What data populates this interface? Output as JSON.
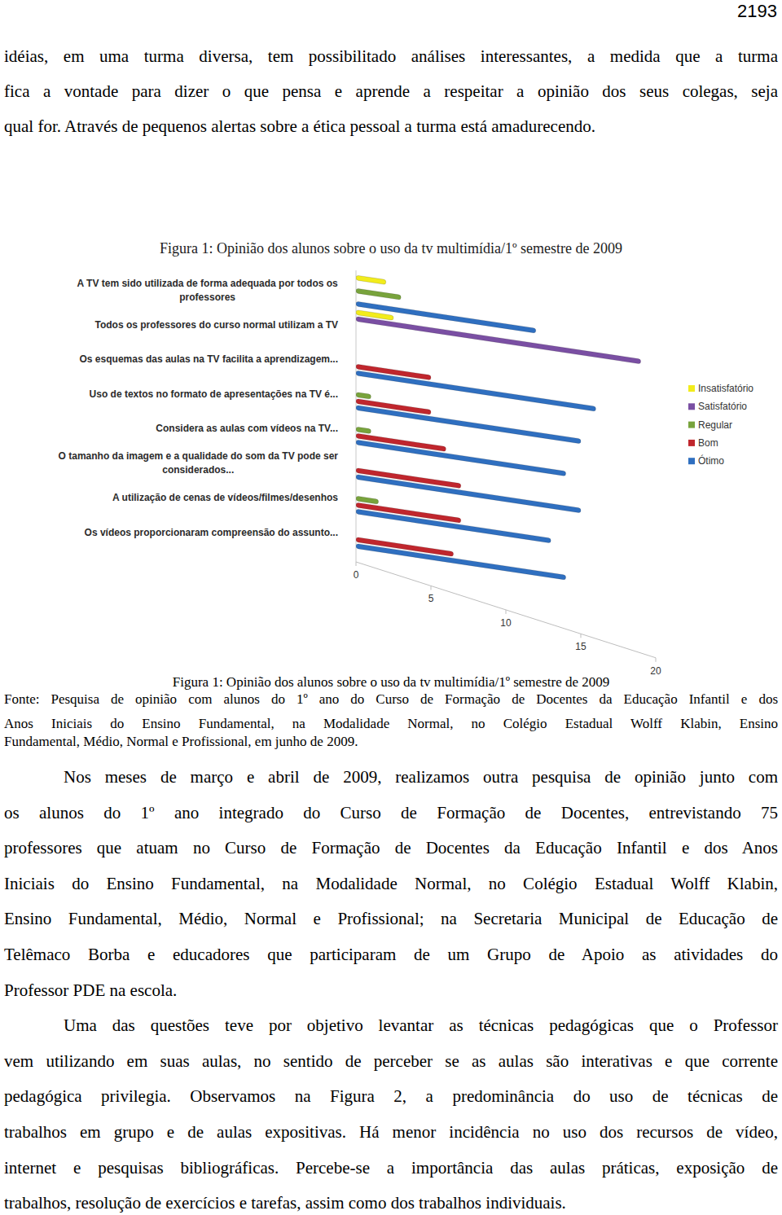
{
  "page_number": "2193",
  "paragraph_top": {
    "lines": [
      "idéias, em uma turma diversa, tem possibilitado análises interessantes, a medida que a turma",
      "fica a vontade para dizer o que pensa e aprende a respeitar a opinião dos seus colegas, seja",
      "qual for. Através de pequenos alertas sobre a ética pessoal a turma está amadurecendo."
    ]
  },
  "figure_title": "Figura 1: Opinião dos alunos sobre o uso da tv multimídia/1º semestre de 2009",
  "chart_data": {
    "type": "bar",
    "orientation": "horizontal",
    "categories": [
      "A TV tem sido utilizada de forma adequada por todos os professores",
      "Todos os professores do curso normal utilizam a TV",
      "Os esquemas das aulas na TV facilita a aprendizagem...",
      "Uso de textos no formato de apresentações na TV é...",
      "Considera as aulas com vídeos na TV...",
      "O tamanho da imagem e a qualidade do som da TV pode ser considerados...",
      "A utilização de cenas de vídeos/filmes/desenhos",
      "Os vídeos proporcionaram compreensão do assunto..."
    ],
    "series": [
      {
        "name": "Insatisfatório",
        "color": "#f2ec1c",
        "values": [
          2,
          2.5,
          0,
          0,
          0,
          0,
          0,
          0
        ]
      },
      {
        "name": "Satisfatório",
        "color": "#7a4fa3",
        "values": [
          0,
          19,
          0,
          0,
          0,
          0,
          0,
          0
        ]
      },
      {
        "name": "Regular",
        "color": "#78a33c",
        "values": [
          3,
          0,
          0,
          1,
          1,
          0,
          1.5,
          0
        ]
      },
      {
        "name": "Bom",
        "color": "#c0262d",
        "values": [
          0,
          0,
          5,
          5,
          6,
          7,
          7,
          6.5
        ]
      },
      {
        "name": "Ótimo",
        "color": "#2f6fc0",
        "values": [
          12,
          0,
          16,
          15,
          14,
          15,
          13,
          14
        ]
      }
    ],
    "xlim": [
      0,
      20
    ],
    "xticks": [
      0,
      5,
      10,
      15,
      20
    ],
    "grid": false,
    "legend": "right"
  },
  "caption": "Figura 1: Opinião dos alunos sobre o uso da tv multimídia/1º semestre de 2009",
  "source_lines": [
    "Fonte: Pesquisa de opinião com alunos do 1º ano do Curso de Formação de Docentes da Educação Infantil e dos",
    "Anos Iniciais do Ensino Fundamental, na Modalidade Normal, no Colégio Estadual Wolff Klabin, Ensino",
    "Fundamental, Médio, Normal e Profissional, em junho de 2009."
  ],
  "paragraphs": [
    {
      "lines": [
        "Nos meses de março e abril de 2009, realizamos outra pesquisa de opinião junto com",
        "os alunos do 1º ano integrado do Curso de Formação de Docentes, entrevistando 75",
        "professores que atuam no Curso de Formação de Docentes da Educação Infantil e dos Anos",
        "Iniciais do Ensino Fundamental, na Modalidade Normal, no Colégio Estadual Wolff Klabin,",
        "Ensino Fundamental, Médio, Normal e Profissional; na Secretaria Municipal de Educação de",
        "Telêmaco Borba e educadores que participaram de um Grupo de Apoio as atividades do",
        "Professor PDE na escola."
      ]
    },
    {
      "lines": [
        "Uma das questões teve por objetivo levantar as técnicas pedagógicas que o Professor",
        "vem utilizando em suas aulas, no sentido de perceber se as aulas são interativas e que corrente",
        "pedagógica privilegia. Observamos na Figura 2, a predominância do uso de técnicas de",
        "trabalhos em grupo e de aulas expositivas. Há menor incidência no uso dos recursos de vídeo,",
        "internet e pesquisas bibliográficas. Percebe-se a importância das aulas práticas, exposição de",
        "trabalhos, resolução de exercícios e tarefas, assim como dos trabalhos individuais."
      ]
    }
  ]
}
